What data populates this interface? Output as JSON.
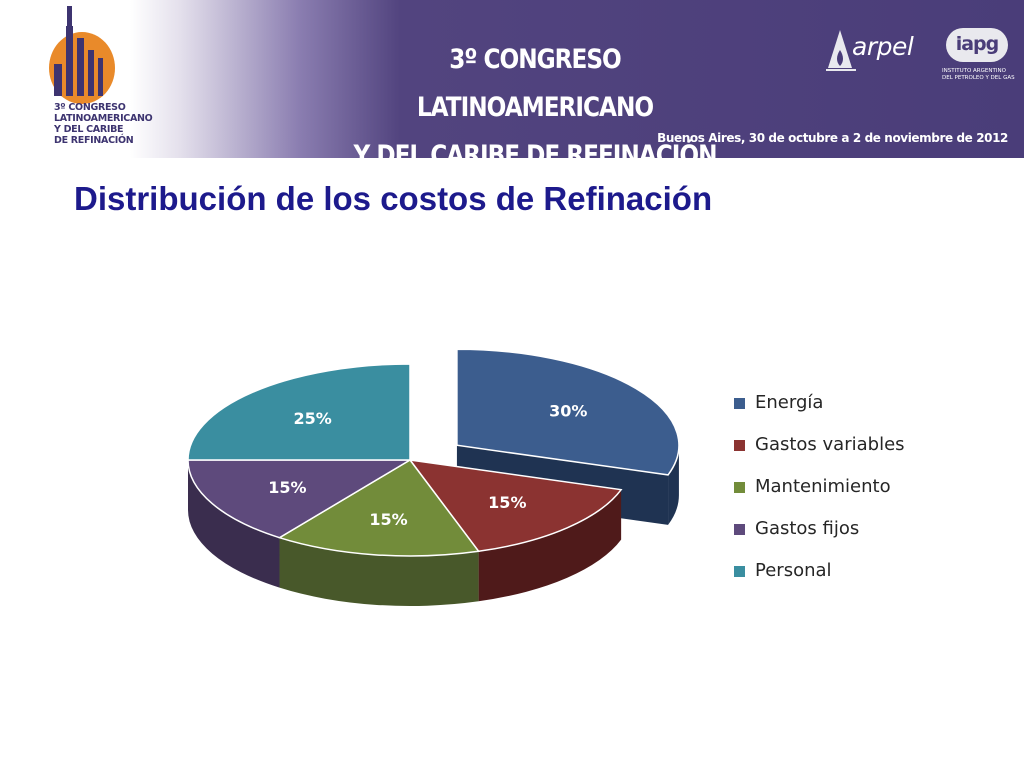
{
  "header": {
    "logo_text_lines": [
      "3º CONGRESO",
      "LATINOAMERICANO",
      "Y DEL CARIBE",
      "DE REFINACIÓN"
    ],
    "title_line1": "3º CONGRESO LATINOAMERICANO",
    "title_line2": "Y DEL CARIBE DE REFINACIÓN",
    "date": "Buenos Aires, 30 de octubre a 2 de noviembre de 2012",
    "arpel_name": "arpel",
    "iapg_name": "iapg",
    "iapg_subtitle_line1": "INSTITUTO ARGENTINO",
    "iapg_subtitle_line2": "DEL PETROLEO Y DEL GAS"
  },
  "slide_title": "Distribución de los costos de Refinación",
  "chart_data": {
    "type": "pie",
    "style": "3d-exploded",
    "legend_position": "right",
    "labels": [
      "Energía",
      "Gastos variables",
      "Mantenimiento",
      "Gastos fijos",
      "Personal"
    ],
    "values": [
      30,
      15,
      15,
      15,
      25
    ],
    "value_labels": [
      "30%",
      "15%",
      "15%",
      "15%",
      "25%"
    ],
    "exploded": [
      true,
      false,
      false,
      false,
      false
    ],
    "colors": [
      "#3c5d8e",
      "#8b3331",
      "#728c3a",
      "#5e4a7c",
      "#3a8ea0"
    ],
    "side_colors": [
      "#1f3352",
      "#4f1a1a",
      "#48582a",
      "#3a2d4e",
      "#215563"
    ]
  }
}
